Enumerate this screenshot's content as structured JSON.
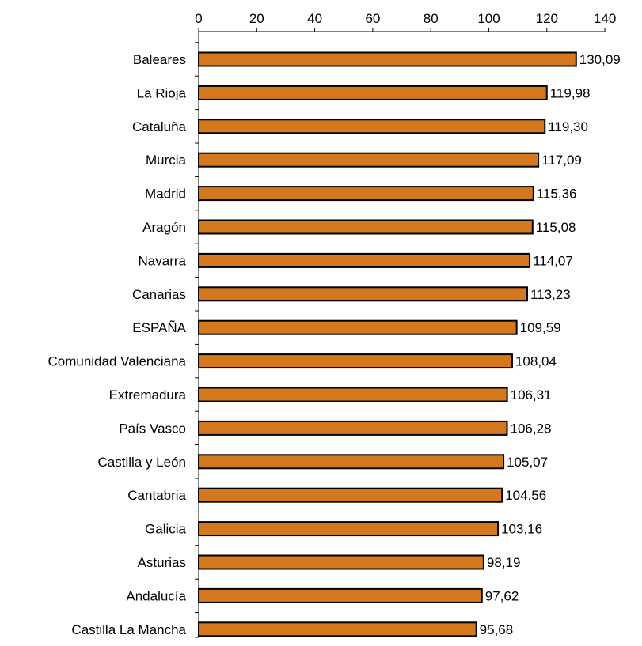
{
  "chart_data": {
    "type": "bar",
    "orientation": "horizontal",
    "title": "",
    "xlabel": "",
    "ylabel": "",
    "xlim": [
      0,
      140
    ],
    "x_ticks": [
      0,
      20,
      40,
      60,
      80,
      100,
      120,
      140
    ],
    "x_tick_labels": [
      "0",
      "20",
      "40",
      "60",
      "80",
      "100",
      "120",
      "140"
    ],
    "axis_position": "top",
    "grid": false,
    "legend": "none",
    "bar_color": "#D4781E",
    "bar_edge_color": "#000000",
    "categories": [
      "Baleares",
      "La Rioja",
      "Cataluña",
      "Murcia",
      "Madrid",
      "Aragón",
      "Navarra",
      "Canarias",
      "ESPAÑA",
      "Comunidad Valenciana",
      "Extremadura",
      "País Vasco",
      "Castilla y León",
      "Cantabria",
      "Galicia",
      "Asturias",
      "Andalucía",
      "Castilla La Mancha"
    ],
    "values": [
      130.09,
      119.98,
      119.3,
      117.09,
      115.36,
      115.08,
      114.07,
      113.23,
      109.59,
      108.04,
      106.31,
      106.28,
      105.07,
      104.56,
      103.16,
      98.19,
      97.62,
      95.68
    ],
    "value_labels": [
      "130,09",
      "119,98",
      "119,30",
      "117,09",
      "115,36",
      "115,08",
      "114,07",
      "113,23",
      "109,59",
      "108,04",
      "106,31",
      "106,28",
      "105,07",
      "104,56",
      "103,16",
      "98,19",
      "97,62",
      "95,68"
    ]
  }
}
